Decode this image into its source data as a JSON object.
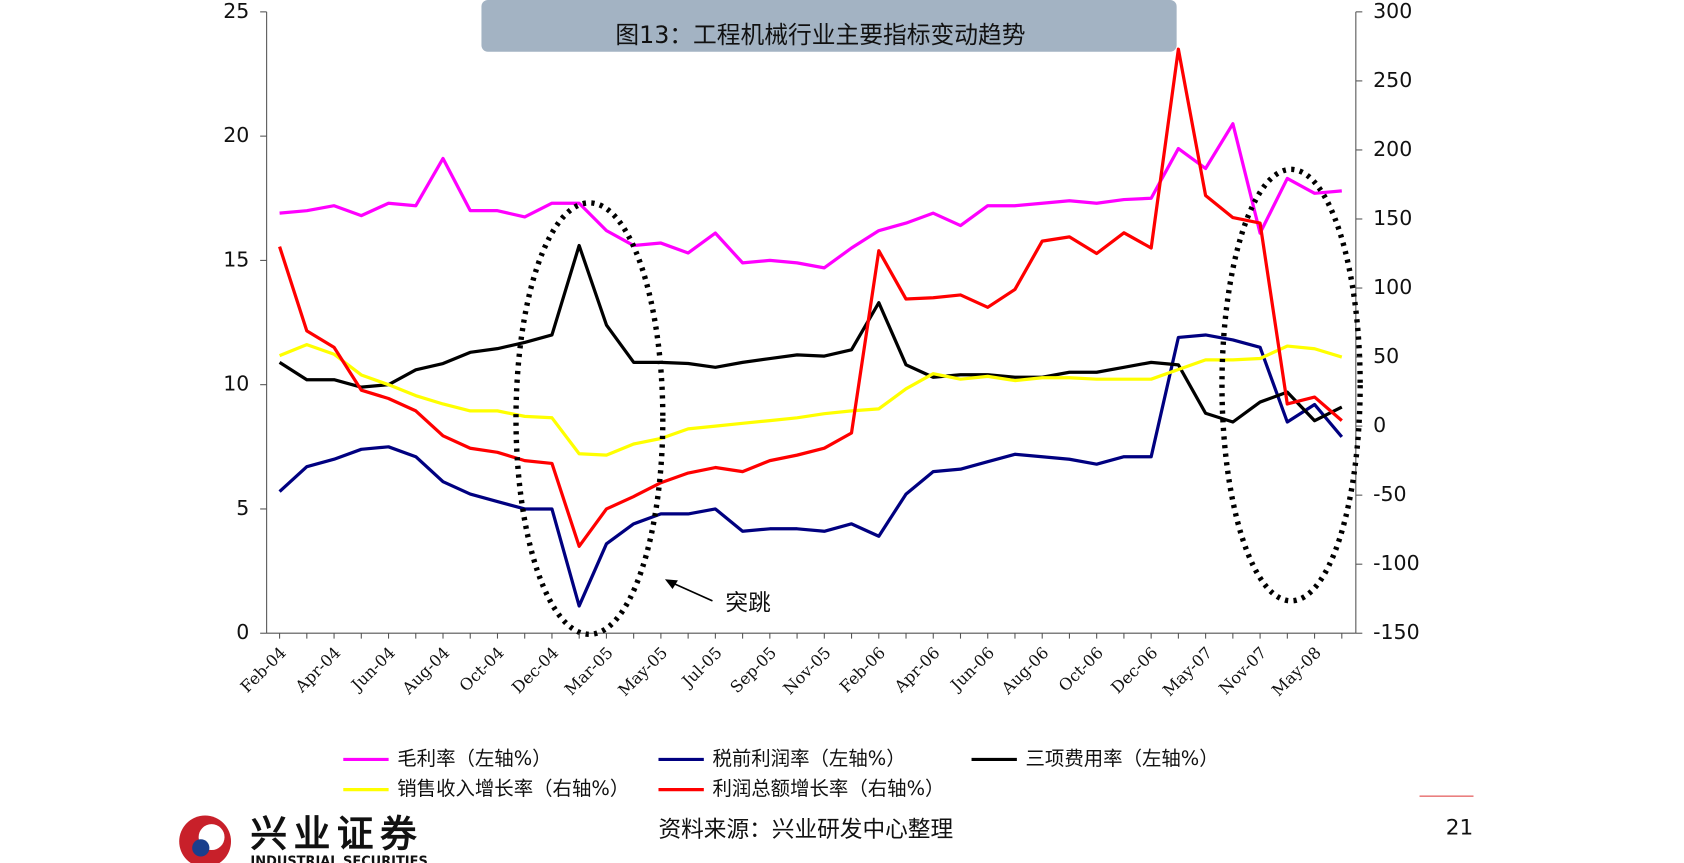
{
  "chart_data": {
    "type": "line",
    "title": "图13：工程机械行业主要指标变动趋势",
    "annotation": "突跳",
    "source": "资料来源：兴业研发中心整理",
    "page_number": "21",
    "logo_name": "兴业证券",
    "logo_subname": "INDUSTRIAL SECURITIES",
    "categories": [
      "Feb-04",
      null,
      "Apr-04",
      null,
      "Jun-04",
      null,
      "Aug-04",
      null,
      "Oct-04",
      null,
      "Dec-04",
      null,
      "Mar-05",
      null,
      "May-05",
      null,
      "Jul-05",
      null,
      "Sep-05",
      null,
      "Nov-05",
      null,
      "Feb-06",
      null,
      "Apr-06",
      null,
      "Jun-06",
      null,
      "Aug-06",
      null,
      "Oct-06",
      null,
      "Dec-06",
      null,
      "May-07",
      null,
      "Nov-07",
      null,
      "May-08",
      null
    ],
    "ylim": [
      0,
      25
    ],
    "yticks": [
      0,
      5,
      10,
      15,
      20,
      25
    ],
    "y2lim": [
      -150,
      300
    ],
    "y2ticks": [
      -150,
      -100,
      -50,
      0,
      50,
      100,
      150,
      200,
      250,
      300
    ],
    "series": [
      {
        "name": "毛利率（左轴%）",
        "color": "#ff00ff",
        "axis": "y",
        "values": [
          16.9,
          17.0,
          17.2,
          16.8,
          17.3,
          17.2,
          19.1,
          17.0,
          17.0,
          16.75,
          17.3,
          17.3,
          16.2,
          15.6,
          15.7,
          15.3,
          16.1,
          14.9,
          15.0,
          14.9,
          14.7,
          15.5,
          16.2,
          16.5,
          16.9,
          16.4,
          17.2,
          17.2,
          17.3,
          17.4,
          17.3,
          17.45,
          17.5,
          19.5,
          18.7,
          20.5,
          16.1,
          18.3,
          17.7,
          17.8
        ]
      },
      {
        "name": "税前利润率（左轴%）",
        "color": "#000080",
        "axis": "y",
        "values": [
          5.7,
          6.7,
          7.0,
          7.4,
          7.5,
          7.1,
          6.1,
          5.6,
          5.3,
          5.0,
          5.0,
          1.1,
          3.6,
          4.4,
          4.8,
          4.8,
          5.0,
          4.1,
          4.2,
          4.2,
          4.1,
          4.4,
          3.9,
          5.6,
          6.5,
          6.6,
          6.9,
          7.2,
          7.1,
          7.0,
          6.8,
          7.1,
          7.1,
          11.9,
          12.0,
          11.8,
          11.5,
          8.5,
          9.2,
          7.9
        ]
      },
      {
        "name": "三项费用率（左轴%）",
        "color": "#000000",
        "axis": "y",
        "values": [
          10.9,
          10.2,
          10.2,
          9.9,
          10.0,
          10.6,
          10.85,
          11.3,
          11.45,
          11.7,
          12.0,
          15.6,
          12.4,
          10.9,
          10.9,
          10.85,
          10.7,
          10.9,
          11.05,
          11.2,
          11.15,
          11.4,
          13.3,
          10.8,
          10.3,
          10.4,
          10.4,
          10.3,
          10.3,
          10.5,
          10.5,
          10.7,
          10.9,
          10.8,
          8.85,
          8.5,
          9.3,
          9.7,
          8.55,
          9.1
        ]
      },
      {
        "name": "销售收入增长率（右轴%）",
        "color": "#ffff00",
        "axis": "y2",
        "values": [
          51,
          59,
          52,
          37,
          30,
          22,
          16,
          11,
          11,
          7,
          6,
          -20,
          -21,
          -13,
          -9,
          -2,
          0,
          2,
          4,
          6,
          9,
          11,
          12.5,
          27,
          38,
          34,
          36,
          33,
          35,
          35,
          34,
          34,
          34,
          41,
          48,
          48,
          49,
          58,
          56,
          50
        ]
      },
      {
        "name": "利润总额增长率（右轴%）",
        "color": "#ff0000",
        "axis": "y2",
        "values": [
          130,
          69,
          57,
          26,
          20,
          11,
          -7,
          -16,
          -19,
          -25,
          -27,
          -87,
          -60,
          -51,
          -41,
          -34,
          -30,
          -33,
          -25,
          -21,
          -16,
          -5,
          127,
          92,
          93,
          95,
          86,
          99,
          134,
          137,
          125,
          140,
          129,
          273,
          167,
          151,
          147,
          16,
          21,
          4
        ]
      }
    ]
  }
}
